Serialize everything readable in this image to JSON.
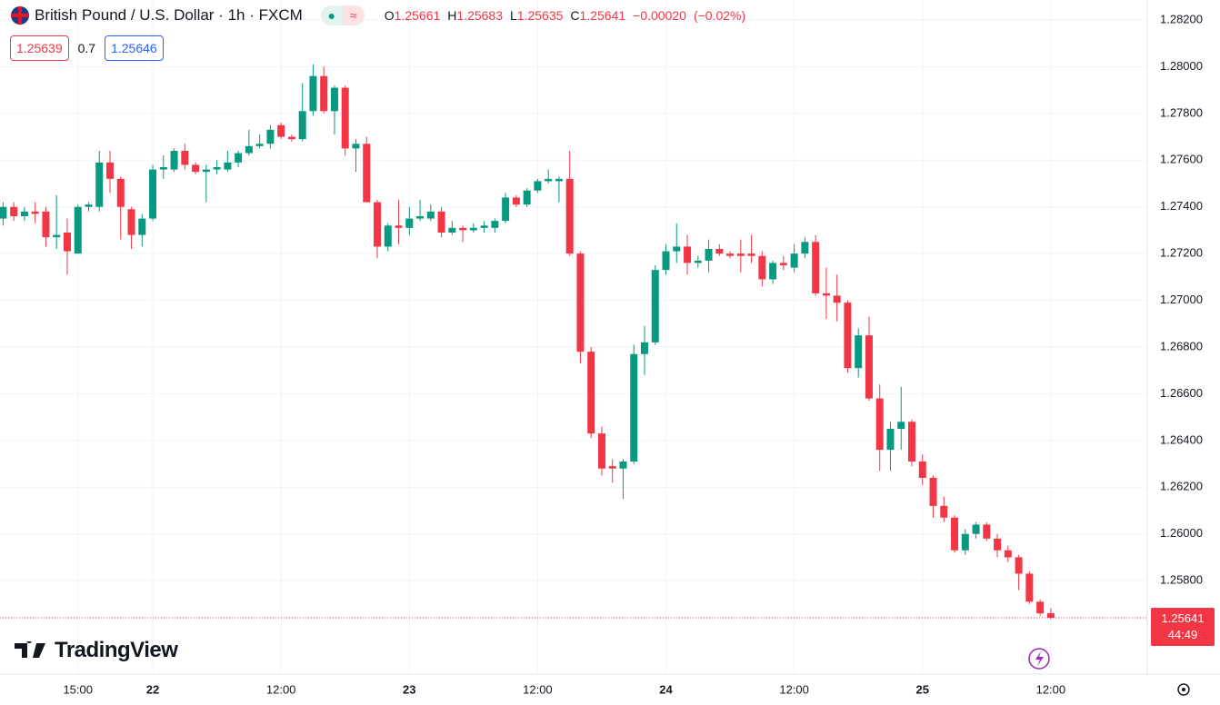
{
  "chart_data": {
    "type": "candlestick",
    "title": "British Pound / U.S. Dollar · 1h · FXCM",
    "legend_items": [
      {
        "label": "O",
        "value": 1.25661
      },
      {
        "label": "H",
        "value": 1.25683
      },
      {
        "label": "L",
        "value": 1.25635
      },
      {
        "label": "C",
        "value": 1.25641
      }
    ],
    "change": "−0.00020",
    "change_pct": "(−0.02%)",
    "bid": 1.25639,
    "spread": 0.7,
    "ask": 1.25646,
    "last_price": 1.25641,
    "countdown": "44:49",
    "brand": "TradingView",
    "up_color": "#089981",
    "down_color": "#f23645",
    "grid": true,
    "categories": [
      null,
      null,
      null,
      null,
      null,
      null,
      null,
      "15:00",
      null,
      null,
      null,
      null,
      null,
      null,
      "22",
      null,
      null,
      null,
      null,
      null,
      null,
      null,
      null,
      null,
      null,
      null,
      "12:00",
      null,
      null,
      null,
      null,
      null,
      null,
      null,
      null,
      null,
      null,
      null,
      "23",
      null,
      null,
      null,
      null,
      null,
      null,
      null,
      null,
      null,
      null,
      null,
      "12:00",
      null,
      null,
      null,
      null,
      null,
      null,
      null,
      null,
      null,
      null,
      null,
      "24",
      null,
      null,
      null,
      null,
      null,
      null,
      null,
      null,
      null,
      null,
      null,
      "12:00",
      null,
      null,
      null,
      null,
      null,
      null,
      null,
      null,
      null,
      null,
      null,
      "25",
      null,
      null,
      null,
      null,
      null,
      null,
      null,
      null,
      null,
      null,
      null,
      "12:00"
    ],
    "open": [
      1.2735,
      1.274,
      1.2736,
      1.2738,
      1.2738,
      1.2727,
      1.2729,
      1.272,
      1.274,
      1.274,
      1.2759,
      1.2752,
      1.2739,
      1.2728,
      1.2735,
      1.2756,
      1.2756,
      1.2764,
      1.2758,
      1.2755,
      1.2756,
      1.2756,
      1.2759,
      1.2763,
      1.2766,
      1.2767,
      1.2775,
      1.277,
      1.2769,
      1.2781,
      1.2796,
      1.2781,
      1.2791,
      1.2765,
      1.2767,
      1.2742,
      1.2723,
      1.2732,
      1.2731,
      1.2735,
      1.2735,
      1.2738,
      1.2729,
      1.2731,
      1.273,
      1.2731,
      1.2731,
      1.2734,
      1.2744,
      1.2741,
      1.2747,
      1.2751,
      1.2751,
      1.2752,
      1.272,
      1.2678,
      1.2643,
      1.2629,
      1.2628,
      1.2631,
      1.2677,
      1.2682,
      1.2713,
      1.2721,
      1.2723,
      1.2716,
      1.2717,
      1.2722,
      1.272,
      1.272,
      1.272,
      1.2719,
      1.2709,
      1.2716,
      1.2714,
      1.272,
      1.2725,
      1.2703,
      1.2702,
      1.2699,
      1.2671,
      1.2685,
      1.2658,
      1.2636,
      1.2645,
      1.2648,
      1.2631,
      1.2624,
      1.2612,
      1.2607,
      1.2593,
      1.26,
      1.2604,
      1.2598,
      1.2593,
      1.259,
      1.2583,
      1.2571,
      1.25661
    ],
    "high": [
      1.2742,
      1.2742,
      1.274,
      1.2742,
      1.274,
      1.2745,
      1.2735,
      1.2741,
      1.2742,
      1.2764,
      1.2764,
      1.2753,
      1.274,
      1.2737,
      1.2758,
      1.2762,
      1.2765,
      1.2767,
      1.2759,
      1.2758,
      1.276,
      1.2764,
      1.2764,
      1.2773,
      1.2771,
      1.2775,
      1.2776,
      1.2771,
      1.2793,
      1.2801,
      1.28,
      1.2792,
      1.2792,
      1.2769,
      1.277,
      1.2743,
      1.2733,
      1.2743,
      1.274,
      1.2743,
      1.2741,
      1.274,
      1.2734,
      1.2732,
      1.2733,
      1.2734,
      1.2735,
      1.2746,
      1.2745,
      1.2748,
      1.2752,
      1.2756,
      1.2753,
      1.2764,
      1.2721,
      1.268,
      1.2646,
      1.2632,
      1.2632,
      1.2681,
      1.2689,
      1.2715,
      1.2724,
      1.2733,
      1.2728,
      1.2719,
      1.2726,
      1.2724,
      1.2721,
      1.2726,
      1.2728,
      1.2721,
      1.2717,
      1.2719,
      1.2724,
      1.2727,
      1.2728,
      1.2714,
      1.2711,
      1.27,
      1.2688,
      1.2693,
      1.2664,
      1.2648,
      1.2663,
      1.2649,
      1.2634,
      1.2625,
      1.2616,
      1.2608,
      1.2602,
      1.2605,
      1.2605,
      1.26,
      1.2595,
      1.2591,
      1.2584,
      1.2572,
      1.25683
    ],
    "low": [
      1.2732,
      1.2734,
      1.2734,
      1.2733,
      1.2723,
      1.2722,
      1.2711,
      1.272,
      1.2738,
      1.2738,
      1.2746,
      1.2726,
      1.2722,
      1.2723,
      1.2734,
      1.2752,
      1.2755,
      1.2756,
      1.2754,
      1.2742,
      1.2754,
      1.2755,
      1.2757,
      1.2762,
      1.2765,
      1.2765,
      1.2769,
      1.2768,
      1.2768,
      1.2779,
      1.278,
      1.2771,
      1.2762,
      1.2755,
      1.2742,
      1.2718,
      1.2721,
      1.2724,
      1.2728,
      1.2734,
      1.2734,
      1.2727,
      1.2728,
      1.2725,
      1.2729,
      1.2729,
      1.2729,
      1.2733,
      1.274,
      1.274,
      1.2746,
      1.275,
      1.2742,
      1.2719,
      1.2673,
      1.2641,
      1.2625,
      1.2622,
      1.2615,
      1.263,
      1.2668,
      1.2681,
      1.2711,
      1.2716,
      1.2711,
      1.2714,
      1.2712,
      1.2719,
      1.2718,
      1.2712,
      1.2716,
      1.2706,
      1.2707,
      1.2713,
      1.2712,
      1.2718,
      1.2702,
      1.2692,
      1.2691,
      1.2669,
      1.2667,
      1.2657,
      1.2627,
      1.2627,
      1.2636,
      1.2629,
      1.2621,
      1.2607,
      1.2605,
      1.2592,
      1.2591,
      1.2598,
      1.2597,
      1.259,
      1.2588,
      1.2576,
      1.257,
      1.2565,
      1.25635
    ],
    "close": [
      1.274,
      1.2736,
      1.2738,
      1.2737,
      1.2727,
      1.2728,
      1.2721,
      1.274,
      1.2741,
      1.2759,
      1.2752,
      1.274,
      1.2728,
      1.2735,
      1.2756,
      1.2757,
      1.2764,
      1.2758,
      1.2755,
      1.2756,
      1.2757,
      1.2759,
      1.2763,
      1.2766,
      1.2767,
      1.2773,
      1.277,
      1.2769,
      1.2781,
      1.2796,
      1.2781,
      1.2791,
      1.2765,
      1.2767,
      1.2742,
      1.2723,
      1.2732,
      1.2731,
      1.2735,
      1.2736,
      1.2738,
      1.2729,
      1.2731,
      1.273,
      1.2731,
      1.2732,
      1.2734,
      1.2744,
      1.2741,
      1.2747,
      1.2751,
      1.2752,
      1.2752,
      1.272,
      1.2678,
      1.2643,
      1.2628,
      1.2628,
      1.2631,
      1.2677,
      1.2682,
      1.2713,
      1.2721,
      1.2723,
      1.2716,
      1.2717,
      1.2722,
      1.272,
      1.2719,
      1.2719,
      1.2719,
      1.2709,
      1.2716,
      1.2715,
      1.272,
      1.2725,
      1.2703,
      1.2702,
      1.2699,
      1.2671,
      1.2685,
      1.2658,
      1.2636,
      1.2645,
      1.2648,
      1.2631,
      1.2624,
      1.2612,
      1.2607,
      1.2593,
      1.26,
      1.2604,
      1.2598,
      1.2593,
      1.259,
      1.2583,
      1.2571,
      1.2566,
      1.25641
    ],
    "ylim": [
      1.254,
      1.282
    ],
    "yticks": [
      {
        "value": 1.282,
        "label": "1.28200"
      },
      {
        "value": 1.28,
        "label": "1.28000"
      },
      {
        "value": 1.278,
        "label": "1.27800"
      },
      {
        "value": 1.276,
        "label": "1.27600"
      },
      {
        "value": 1.274,
        "label": "1.27400"
      },
      {
        "value": 1.272,
        "label": "1.27200"
      },
      {
        "value": 1.27,
        "label": "1.27000"
      },
      {
        "value": 1.268,
        "label": "1.26800"
      },
      {
        "value": 1.266,
        "label": "1.26600"
      },
      {
        "value": 1.264,
        "label": "1.26400"
      },
      {
        "value": 1.262,
        "label": "1.26200"
      },
      {
        "value": 1.26,
        "label": "1.26000"
      },
      {
        "value": 1.258,
        "label": "1.25800"
      }
    ]
  }
}
